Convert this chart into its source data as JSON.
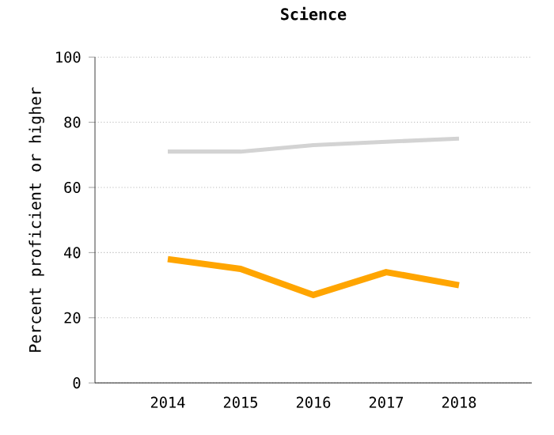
{
  "chart_data": {
    "type": "line",
    "title": "Science",
    "ylabel": "Percent proficient or higher",
    "x": [
      2014,
      2015,
      2016,
      2017,
      2018
    ],
    "series": [
      {
        "color": "#d3d3d3",
        "values": [
          71,
          71,
          73,
          74,
          75
        ]
      },
      {
        "color": "#ffa500",
        "values": [
          38,
          35,
          27,
          34,
          30
        ]
      }
    ],
    "xlim": [
      2013,
      2019
    ],
    "xticks": [
      2014,
      2015,
      2016,
      2017,
      2018
    ],
    "ylim": [
      0,
      100
    ],
    "yticks": [
      0,
      20,
      40,
      60,
      80,
      100
    ],
    "grid": "y",
    "marker": "none",
    "line_style": "solid"
  }
}
